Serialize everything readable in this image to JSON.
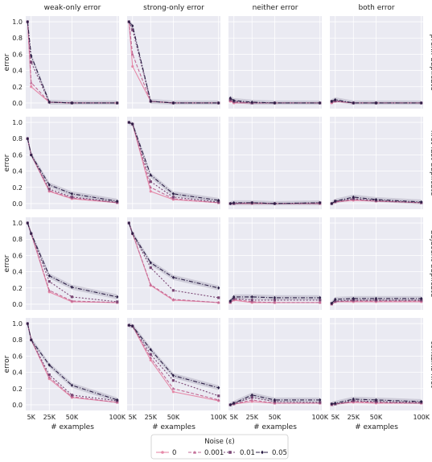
{
  "chart_data": {
    "type": "line",
    "column_titles": [
      "weak-only error",
      "strong-only error",
      "neither error",
      "both error"
    ],
    "row_labels": [
      "prefix duplicate",
      "first-last duplicate",
      "adjacent duplicate",
      "contains first"
    ],
    "xlabel": "# examples",
    "ylabel": "error",
    "x": [
      1000,
      5000,
      25000,
      50000,
      100000
    ],
    "xticks": [
      5000,
      25000,
      50000,
      100000
    ],
    "xtick_labels": [
      "5K",
      "25K",
      "50K",
      "100K"
    ],
    "xlim": [
      -1000,
      102000
    ],
    "ylim": [
      -0.07,
      1.07
    ],
    "yticks": [
      0.0,
      0.2,
      0.4,
      0.6,
      0.8,
      1.0
    ],
    "ytick_labels": [
      "0.0",
      "0.2",
      "0.4",
      "0.6",
      "0.8",
      "1.0"
    ],
    "grid": true,
    "legend": {
      "title": "Noise (ε)",
      "placement": "bottom-center",
      "entries": [
        "0",
        "0.001",
        "0.01",
        "0.05"
      ],
      "colors": [
        "#e68aa9",
        "#c26a95",
        "#7a4775",
        "#2b1e45"
      ],
      "markers": [
        "circle",
        "triangle",
        "square",
        "diamond"
      ]
    },
    "panels": [
      [
        {
          "series": [
            [
              1.0,
              0.2,
              0.01,
              0.0,
              0.0
            ],
            [
              1.0,
              0.25,
              0.01,
              0.0,
              0.0
            ],
            [
              1.0,
              0.5,
              0.01,
              0.0,
              0.0
            ],
            [
              1.0,
              0.58,
              0.01,
              0.0,
              0.0
            ]
          ]
        },
        {
          "series": [
            [
              1.0,
              0.45,
              0.02,
              0.0,
              0.0
            ],
            [
              1.0,
              0.6,
              0.02,
              0.0,
              0.0
            ],
            [
              1.0,
              0.9,
              0.02,
              0.0,
              0.0
            ],
            [
              1.0,
              0.95,
              0.02,
              0.0,
              0.0
            ]
          ]
        },
        {
          "series": [
            [
              0.02,
              0.0,
              0.0,
              0.0,
              0.0
            ],
            [
              0.03,
              0.01,
              0.0,
              0.0,
              0.0
            ],
            [
              0.04,
              0.02,
              0.0,
              0.0,
              0.0
            ],
            [
              0.06,
              0.03,
              0.01,
              0.0,
              0.0
            ]
          ]
        },
        {
          "series": [
            [
              0.0,
              0.02,
              0.0,
              0.0,
              0.0
            ],
            [
              0.01,
              0.02,
              0.0,
              0.0,
              0.0
            ],
            [
              0.02,
              0.03,
              0.0,
              0.0,
              0.0
            ],
            [
              0.02,
              0.04,
              0.0,
              0.0,
              0.0
            ]
          ]
        }
      ],
      [
        {
          "series": [
            [
              0.8,
              0.6,
              0.15,
              0.06,
              0.01
            ],
            [
              0.8,
              0.6,
              0.16,
              0.07,
              0.01
            ],
            [
              0.8,
              0.6,
              0.18,
              0.08,
              0.02
            ],
            [
              0.8,
              0.6,
              0.23,
              0.12,
              0.03
            ]
          ]
        },
        {
          "series": [
            [
              1.0,
              0.98,
              0.15,
              0.05,
              0.01
            ],
            [
              1.0,
              0.98,
              0.2,
              0.06,
              0.01
            ],
            [
              1.0,
              0.98,
              0.27,
              0.08,
              0.02
            ],
            [
              1.0,
              0.98,
              0.35,
              0.12,
              0.04
            ]
          ]
        },
        {
          "series": [
            [
              0.0,
              0.0,
              0.0,
              0.0,
              0.0
            ],
            [
              0.0,
              0.0,
              0.01,
              0.0,
              0.0
            ],
            [
              0.0,
              0.0,
              0.01,
              0.0,
              0.01
            ],
            [
              0.0,
              0.01,
              0.01,
              0.0,
              0.01
            ]
          ]
        },
        {
          "series": [
            [
              0.0,
              0.02,
              0.04,
              0.03,
              0.01
            ],
            [
              0.0,
              0.02,
              0.05,
              0.03,
              0.01
            ],
            [
              0.0,
              0.03,
              0.06,
              0.04,
              0.01
            ],
            [
              0.0,
              0.03,
              0.08,
              0.05,
              0.02
            ]
          ]
        }
      ],
      [
        {
          "series": [
            [
              1.0,
              0.87,
              0.15,
              0.03,
              0.02
            ],
            [
              1.0,
              0.87,
              0.17,
              0.04,
              0.02
            ],
            [
              1.0,
              0.87,
              0.28,
              0.09,
              0.03
            ],
            [
              1.0,
              0.87,
              0.35,
              0.21,
              0.09
            ]
          ]
        },
        {
          "series": [
            [
              1.0,
              0.87,
              0.23,
              0.05,
              0.02
            ],
            [
              1.0,
              0.87,
              0.24,
              0.06,
              0.02
            ],
            [
              1.0,
              0.87,
              0.45,
              0.17,
              0.08
            ],
            [
              1.0,
              0.87,
              0.51,
              0.33,
              0.2
            ]
          ]
        },
        {
          "series": [
            [
              0.02,
              0.05,
              0.02,
              0.02,
              0.02
            ],
            [
              0.02,
              0.06,
              0.03,
              0.02,
              0.02
            ],
            [
              0.03,
              0.07,
              0.05,
              0.05,
              0.05
            ],
            [
              0.04,
              0.09,
              0.09,
              0.08,
              0.08
            ]
          ]
        },
        {
          "series": [
            [
              0.0,
              0.03,
              0.03,
              0.03,
              0.03
            ],
            [
              0.0,
              0.03,
              0.04,
              0.04,
              0.04
            ],
            [
              0.01,
              0.04,
              0.05,
              0.05,
              0.05
            ],
            [
              0.01,
              0.06,
              0.07,
              0.07,
              0.07
            ]
          ]
        }
      ],
      [
        {
          "series": [
            [
              1.0,
              0.8,
              0.32,
              0.09,
              0.03
            ],
            [
              1.0,
              0.8,
              0.34,
              0.1,
              0.03
            ],
            [
              1.0,
              0.8,
              0.37,
              0.12,
              0.05
            ],
            [
              1.0,
              0.8,
              0.49,
              0.24,
              0.06
            ]
          ]
        },
        {
          "series": [
            [
              0.98,
              0.97,
              0.55,
              0.16,
              0.05
            ],
            [
              0.98,
              0.97,
              0.58,
              0.2,
              0.06
            ],
            [
              0.98,
              0.97,
              0.62,
              0.3,
              0.11
            ],
            [
              0.98,
              0.97,
              0.68,
              0.36,
              0.21
            ]
          ]
        },
        {
          "series": [
            [
              0.0,
              0.01,
              0.04,
              0.02,
              0.02
            ],
            [
              0.0,
              0.01,
              0.06,
              0.02,
              0.02
            ],
            [
              0.0,
              0.02,
              0.09,
              0.04,
              0.03
            ],
            [
              0.0,
              0.02,
              0.12,
              0.06,
              0.06
            ]
          ]
        },
        {
          "series": [
            [
              0.0,
              0.01,
              0.03,
              0.02,
              0.02
            ],
            [
              0.0,
              0.01,
              0.04,
              0.03,
              0.02
            ],
            [
              0.01,
              0.01,
              0.05,
              0.04,
              0.03
            ],
            [
              0.01,
              0.02,
              0.07,
              0.06,
              0.04
            ]
          ]
        }
      ]
    ]
  }
}
